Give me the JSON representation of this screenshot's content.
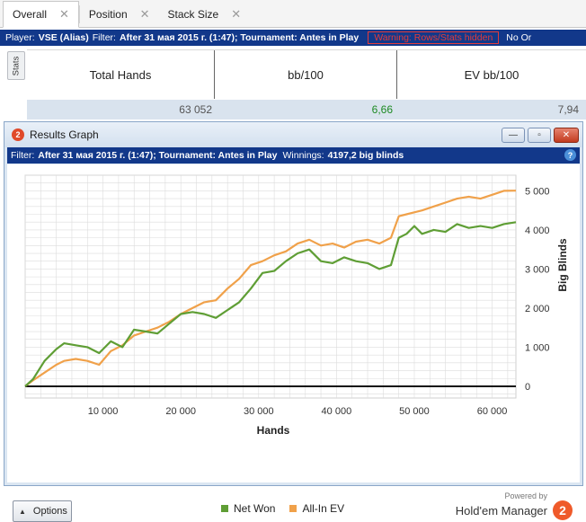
{
  "tabs": [
    {
      "label": "Overall",
      "active": true
    },
    {
      "label": "Position",
      "active": false
    },
    {
      "label": "Stack Size",
      "active": false
    }
  ],
  "filter_bar": {
    "player_label": "Player:",
    "player_value": "VSE (Alias)",
    "filter_label": "Filter:",
    "filter_value": "After 31 мая 2015 г. (1:47); Tournament: Antes in Play",
    "hidden_warning": "Warning: Rows/Stats hidden",
    "overflow_text": "No Or"
  },
  "stats": {
    "side_tab": "Stats",
    "headers": [
      "Total Hands",
      "bb/100",
      "EV bb/100"
    ],
    "values": [
      "63 052",
      "6,66",
      "7,94"
    ]
  },
  "graph_window": {
    "title": "Results Graph",
    "logo_text": "2",
    "minimize": "—",
    "maximize": "▫",
    "close": "✕",
    "filter_label": "Filter:",
    "filter_value": "After 31 мая 2015 г. (1:47); Tournament: Antes in Play",
    "winnings_label": "Winnings:",
    "winnings_value": "4197,2 big blinds",
    "help": "?",
    "options_label": "Options",
    "powered_by": "Powered by",
    "brand": "Hold'em Manager",
    "brand_logo": "2"
  },
  "colors": {
    "net_won": "#5f9e35",
    "all_in_ev": "#f0a14a",
    "filter_bar": "#12388a",
    "grid": "#dcdcdc"
  },
  "chart_data": {
    "type": "line",
    "title": "",
    "xlabel": "Hands",
    "ylabel": "Big Blinds",
    "xlim": [
      0,
      63052
    ],
    "ylim": [
      -300,
      5400
    ],
    "x_ticks": [
      10000,
      20000,
      30000,
      40000,
      50000,
      60000
    ],
    "x_tick_labels": [
      "10 000",
      "20 000",
      "30 000",
      "40 000",
      "50 000",
      "60 000"
    ],
    "y_ticks": [
      0,
      1000,
      2000,
      3000,
      4000,
      5000
    ],
    "y_tick_labels": [
      "0",
      "1 000",
      "2 000",
      "3 000",
      "4 000",
      "5 000"
    ],
    "grid": true,
    "legend_position": "bottom-center",
    "x": [
      0,
      1000,
      2500,
      4000,
      5000,
      6500,
      8000,
      9500,
      11000,
      12500,
      14000,
      15500,
      17000,
      18500,
      20000,
      21500,
      23000,
      24500,
      26000,
      27500,
      29000,
      30500,
      32000,
      33500,
      35000,
      36500,
      38000,
      39500,
      41000,
      42500,
      44000,
      45500,
      47000,
      48000,
      49000,
      50000,
      51000,
      52500,
      54000,
      55500,
      57000,
      58500,
      60000,
      61500,
      63052
    ],
    "series": [
      {
        "name": "Net Won",
        "values": [
          0,
          180,
          650,
          950,
          1100,
          1050,
          1000,
          850,
          1150,
          1000,
          1450,
          1400,
          1350,
          1600,
          1850,
          1900,
          1850,
          1750,
          1950,
          2150,
          2500,
          2900,
          2950,
          3200,
          3400,
          3500,
          3200,
          3150,
          3300,
          3200,
          3150,
          3000,
          3100,
          3800,
          3900,
          4100,
          3900,
          4000,
          3950,
          4150,
          4050,
          4100,
          4050,
          4150,
          4197
        ]
      },
      {
        "name": "All-In EV",
        "values": [
          0,
          150,
          350,
          550,
          650,
          700,
          650,
          550,
          900,
          1050,
          1300,
          1400,
          1500,
          1650,
          1850,
          2000,
          2150,
          2200,
          2500,
          2750,
          3100,
          3200,
          3350,
          3450,
          3650,
          3750,
          3600,
          3650,
          3550,
          3700,
          3750,
          3650,
          3800,
          4350,
          4400,
          4450,
          4500,
          4600,
          4700,
          4800,
          4850,
          4800,
          4900,
          5000,
          5005
        ]
      }
    ]
  }
}
